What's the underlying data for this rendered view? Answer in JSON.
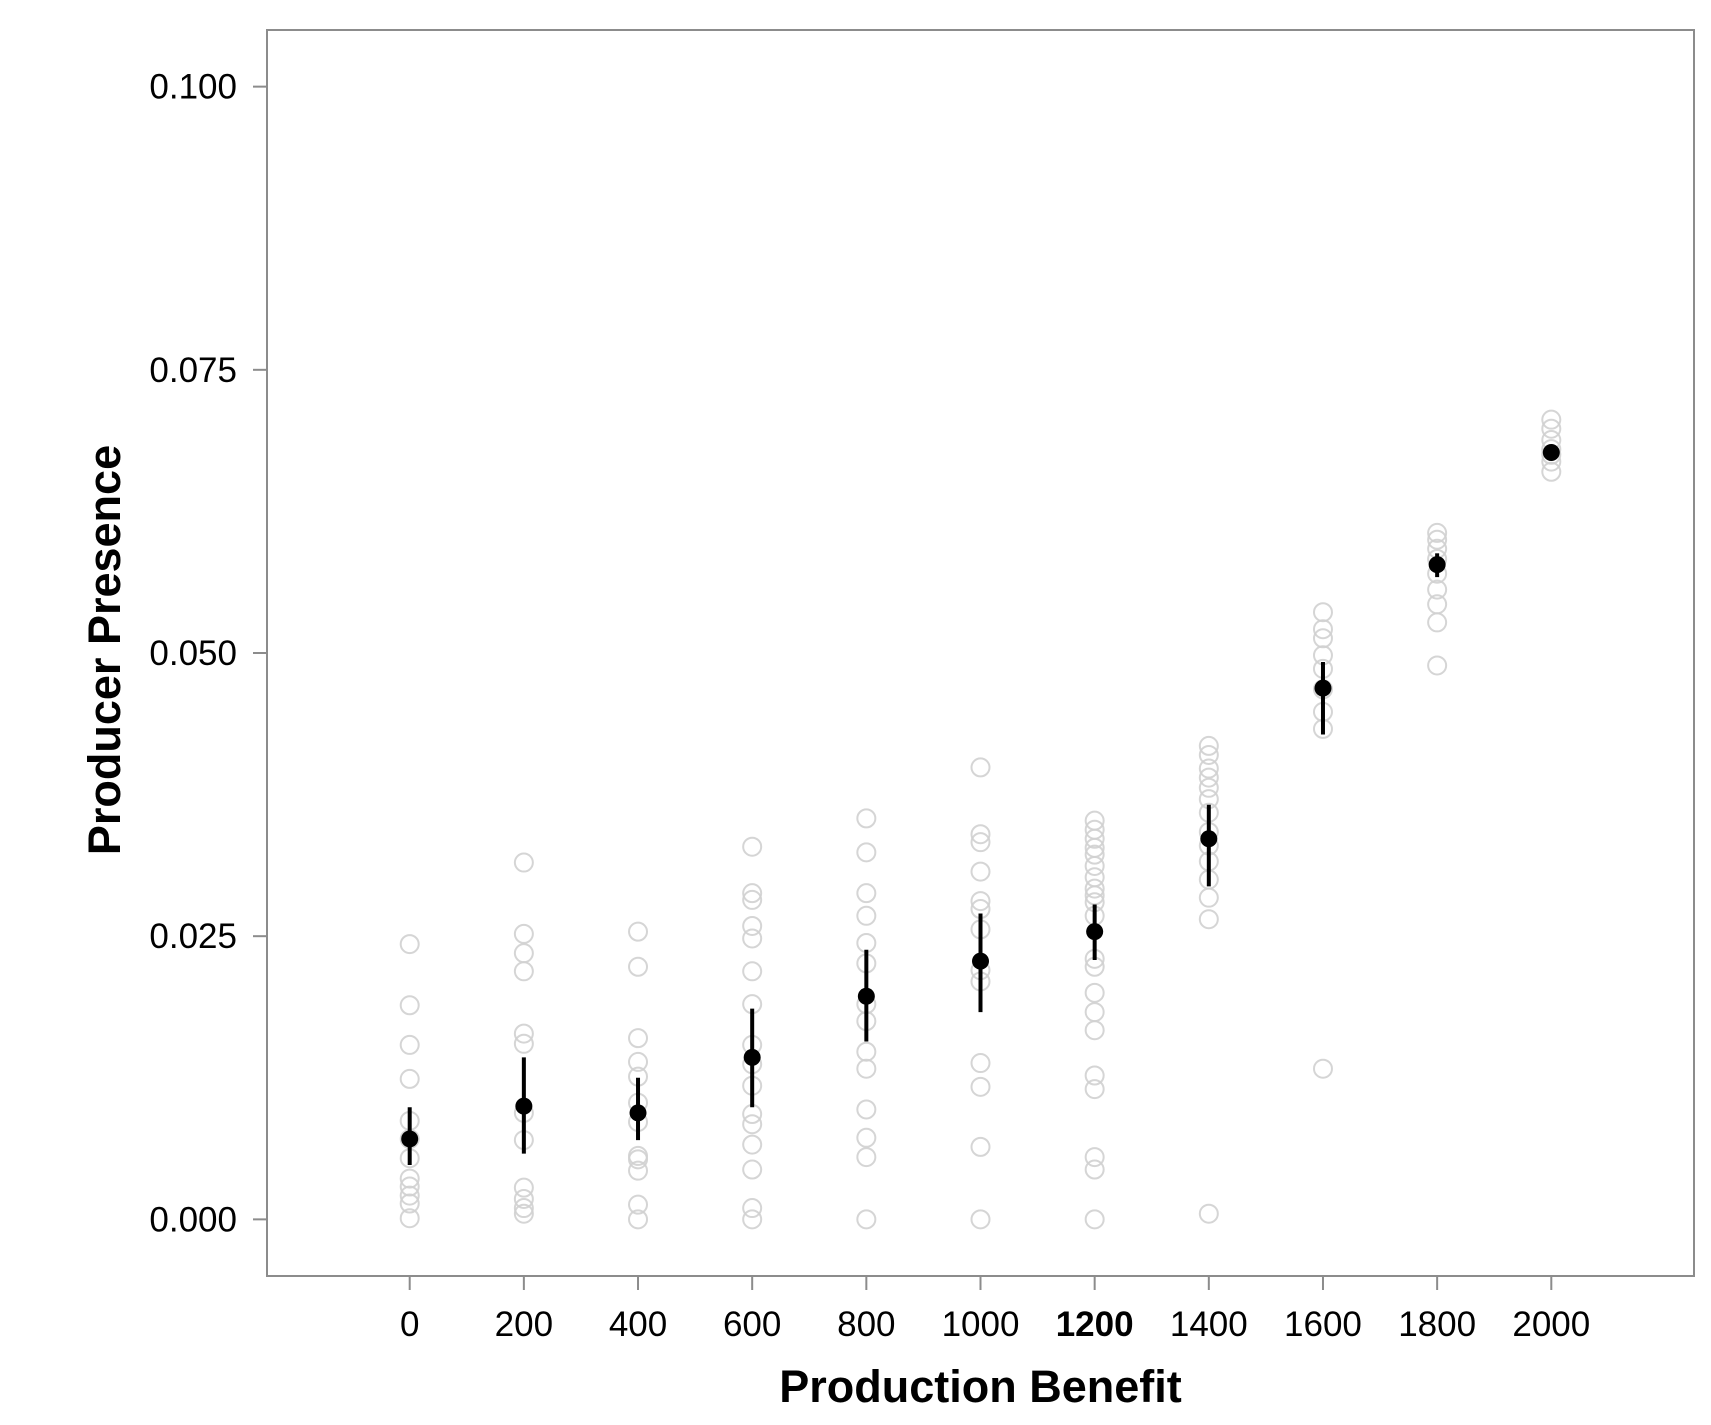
{
  "chart_data": {
    "type": "scatter",
    "title": "",
    "xlabel": "Production Benefit",
    "ylabel": "Producer Presence",
    "xlim": [
      -250,
      2250
    ],
    "ylim": [
      -0.005,
      0.105
    ],
    "x_ticks": [
      {
        "value": 0,
        "label": "0",
        "bold": false
      },
      {
        "value": 200,
        "label": "200",
        "bold": false
      },
      {
        "value": 400,
        "label": "400",
        "bold": false
      },
      {
        "value": 600,
        "label": "600",
        "bold": false
      },
      {
        "value": 800,
        "label": "800",
        "bold": false
      },
      {
        "value": 1000,
        "label": "1000",
        "bold": false
      },
      {
        "value": 1200,
        "label": "1200",
        "bold": true
      },
      {
        "value": 1400,
        "label": "1400",
        "bold": false
      },
      {
        "value": 1600,
        "label": "1600",
        "bold": false
      },
      {
        "value": 1800,
        "label": "1800",
        "bold": false
      },
      {
        "value": 2000,
        "label": "2000",
        "bold": false
      }
    ],
    "y_ticks": [
      {
        "value": 0.0,
        "label": "0.000"
      },
      {
        "value": 0.025,
        "label": "0.025"
      },
      {
        "value": 0.05,
        "label": "0.050"
      },
      {
        "value": 0.075,
        "label": "0.075"
      },
      {
        "value": 0.1,
        "label": "0.100"
      }
    ],
    "grid": false,
    "legend": "none",
    "colors": {
      "raw_point": "#d0d0d0",
      "mean_point": "#000000",
      "error_bar": "#000000",
      "frame": "#8c8c8c"
    },
    "series": [
      {
        "kind": "raw_runs",
        "groups": [
          {
            "x": 0,
            "y": [
              0.0243,
              0.0189,
              0.0154,
              0.0124,
              0.0087,
              0.0071,
              0.0054,
              0.0036,
              0.0029,
              0.0021,
              0.0014,
              0.0001
            ]
          },
          {
            "x": 200,
            "y": [
              0.0315,
              0.0252,
              0.0235,
              0.0219,
              0.0164,
              0.0155,
              0.0094,
              0.007,
              0.0028,
              0.0018,
              0.001,
              0.0005
            ]
          },
          {
            "x": 400,
            "y": [
              0.0254,
              0.0223,
              0.016,
              0.0139,
              0.0126,
              0.0103,
              0.0086,
              0.0056,
              0.0053,
              0.0043,
              0.0013,
              0.0
            ]
          },
          {
            "x": 600,
            "y": [
              0.0329,
              0.0288,
              0.0282,
              0.0259,
              0.0248,
              0.0219,
              0.019,
              0.0154,
              0.0137,
              0.0118,
              0.0093,
              0.0084,
              0.0066,
              0.0044,
              0.001,
              0.0
            ]
          },
          {
            "x": 800,
            "y": [
              0.0354,
              0.0324,
              0.0288,
              0.0268,
              0.0244,
              0.0226,
              0.019,
              0.0175,
              0.0148,
              0.0133,
              0.0097,
              0.0072,
              0.0055,
              0.0
            ]
          },
          {
            "x": 1000,
            "y": [
              0.0399,
              0.034,
              0.0333,
              0.0307,
              0.0281,
              0.0274,
              0.0256,
              0.022,
              0.021,
              0.0138,
              0.0117,
              0.0064,
              0.0
            ]
          },
          {
            "x": 1200,
            "y": [
              0.0352,
              0.0344,
              0.0336,
              0.0328,
              0.0322,
              0.0312,
              0.0302,
              0.0292,
              0.0286,
              0.028,
              0.0268,
              0.023,
              0.0223,
              0.02,
              0.0183,
              0.0167,
              0.0127,
              0.0115,
              0.0055,
              0.0044,
              0.0
            ]
          },
          {
            "x": 1400,
            "y": [
              0.0418,
              0.041,
              0.0398,
              0.039,
              0.0381,
              0.0371,
              0.0359,
              0.0342,
              0.033,
              0.0316,
              0.03,
              0.0284,
              0.0265,
              0.0005
            ]
          },
          {
            "x": 1600,
            "y": [
              0.0536,
              0.0521,
              0.0513,
              0.0498,
              0.0486,
              0.0468,
              0.0448,
              0.0433,
              0.0133
            ]
          },
          {
            "x": 1800,
            "y": [
              0.0606,
              0.06,
              0.0592,
              0.0583,
              0.057,
              0.0556,
              0.0543,
              0.0527,
              0.0489
            ]
          },
          {
            "x": 2000,
            "y": [
              0.0706,
              0.0698,
              0.0688,
              0.068,
              0.0675,
              0.0669,
              0.066
            ]
          }
        ]
      },
      {
        "kind": "mean_with_error",
        "points": [
          {
            "x": 0,
            "y": 0.0071,
            "lo": 0.0048,
            "hi": 0.0099
          },
          {
            "x": 200,
            "y": 0.01,
            "lo": 0.0058,
            "hi": 0.0143
          },
          {
            "x": 400,
            "y": 0.0094,
            "lo": 0.007,
            "hi": 0.0125
          },
          {
            "x": 600,
            "y": 0.0143,
            "lo": 0.0099,
            "hi": 0.0186
          },
          {
            "x": 800,
            "y": 0.0197,
            "lo": 0.0157,
            "hi": 0.0238
          },
          {
            "x": 1000,
            "y": 0.0228,
            "lo": 0.0183,
            "hi": 0.027
          },
          {
            "x": 1200,
            "y": 0.0254,
            "lo": 0.0229,
            "hi": 0.0278
          },
          {
            "x": 1400,
            "y": 0.0336,
            "lo": 0.0294,
            "hi": 0.0366
          },
          {
            "x": 1600,
            "y": 0.0469,
            "lo": 0.0428,
            "hi": 0.0492
          },
          {
            "x": 1800,
            "y": 0.0578,
            "lo": 0.0567,
            "hi": 0.0588
          },
          {
            "x": 2000,
            "y": 0.0677,
            "lo": 0.0672,
            "hi": 0.0682
          }
        ]
      }
    ]
  }
}
